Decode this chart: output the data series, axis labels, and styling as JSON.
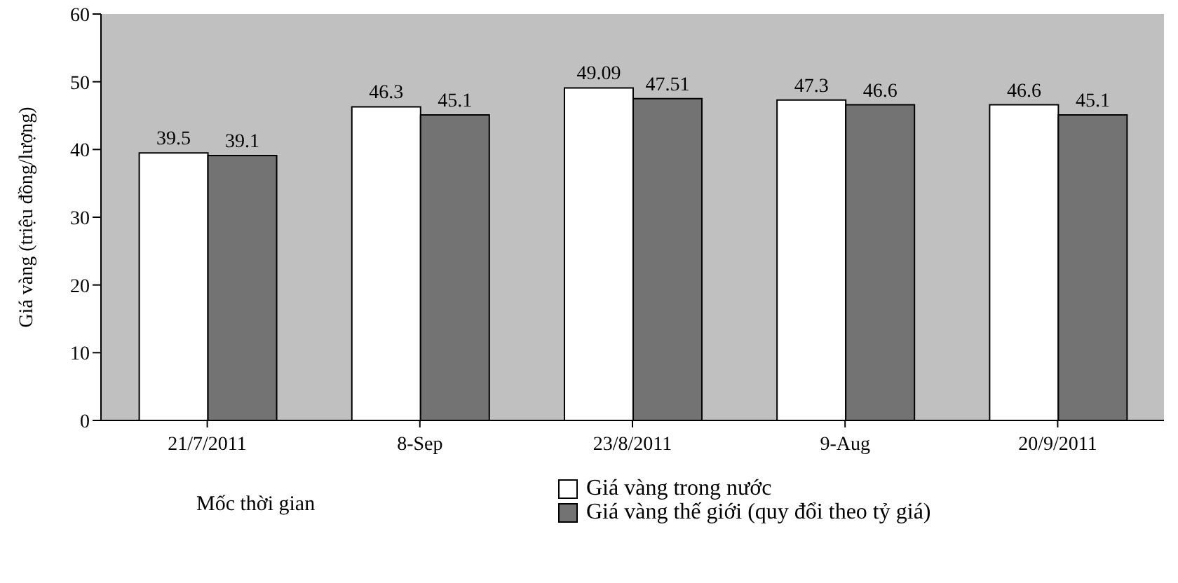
{
  "chart_data": {
    "type": "bar",
    "xlabel": "Mốc thời gian",
    "ylabel": "Giá vàng (triệu đồng/lượng)",
    "categories": [
      "21/7/2011",
      "8-Sep",
      "23/8/2011",
      "9-Aug",
      "20/9/2011"
    ],
    "series": [
      {
        "name": "Giá vàng trong nước",
        "color": "#ffffff",
        "values": [
          39.5,
          46.3,
          49.09,
          47.3,
          46.6
        ]
      },
      {
        "name": "Giá vàng thế giới (quy đổi theo tỷ giá)",
        "color": "#737373",
        "values": [
          39.1,
          45.1,
          47.51,
          46.6,
          45.1
        ]
      }
    ],
    "ylim": [
      0,
      60
    ],
    "yticks": [
      0,
      10,
      20,
      30,
      40,
      50,
      60
    ],
    "data_labels": true,
    "legend": "bottom"
  }
}
